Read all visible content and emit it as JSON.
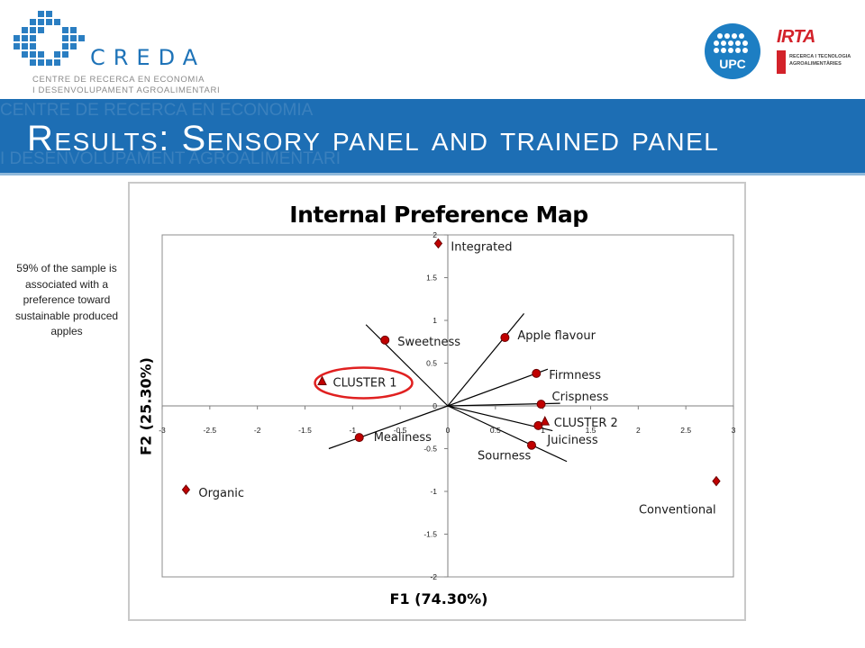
{
  "header": {
    "creda_name": "CREDA",
    "creda_sub1": "CENTRE DE RECERCA EN ECONOMIA",
    "creda_sub2": "I DESENVOLUPAMENT AGROALIMENTARI",
    "upc_name": "UPC",
    "irta_name": "IRTA",
    "irta_sub1": "RECERCA I TECNOLOGIA",
    "irta_sub2": "AGROALIMENTÀRIES"
  },
  "banner": {
    "title": "Results: Sensory panel and trained panel"
  },
  "side_note": "59% of the sample is associated with a preference toward sustainable produced apples",
  "colors": {
    "banner": "#1d6eb4",
    "marker_fill": "#c00000",
    "marker_stroke": "#6b0000",
    "cluster_circle": "#e02020"
  },
  "chart_data": {
    "type": "scatter",
    "title": "Internal Preference Map",
    "xlabel": "F1 (74.30%)",
    "ylabel": "F2 (25.30%)",
    "xlim": [
      -3,
      3
    ],
    "ylim": [
      -2,
      2
    ],
    "xticks": [
      -3,
      -2.5,
      -2,
      -1.5,
      -1,
      -0.5,
      0,
      0.5,
      1,
      1.5,
      2,
      2.5,
      3
    ],
    "yticks": [
      -2,
      -1.5,
      -1,
      -0.5,
      0,
      0.5,
      1,
      1.5,
      2
    ],
    "products": [
      {
        "label": "Integrated",
        "x": -0.1,
        "y": 1.9
      },
      {
        "label": "Organic",
        "x": -2.75,
        "y": -0.98
      },
      {
        "label": "Conventional",
        "x": 2.82,
        "y": -0.88
      }
    ],
    "attributes": [
      {
        "label": "Sweetness",
        "x": -0.66,
        "y": 0.77,
        "line_end": [
          -0.86,
          0.95
        ]
      },
      {
        "label": "Apple flavour",
        "x": 0.6,
        "y": 0.8,
        "line_end": [
          0.8,
          1.08
        ]
      },
      {
        "label": "Firmness",
        "x": 0.93,
        "y": 0.38,
        "line_end": [
          1.05,
          0.43
        ]
      },
      {
        "label": "Crispness",
        "x": 0.98,
        "y": 0.02,
        "line_end": [
          1.18,
          0.03
        ]
      },
      {
        "label": "Juiciness",
        "x": 0.95,
        "y": -0.23,
        "line_end": [
          1.1,
          -0.29
        ]
      },
      {
        "label": "Sourness",
        "x": 0.88,
        "y": -0.46,
        "line_end": [
          1.25,
          -0.65
        ]
      },
      {
        "label": "Mealiness",
        "x": -0.93,
        "y": -0.37,
        "line_end": [
          -1.25,
          -0.5
        ]
      }
    ],
    "clusters": [
      {
        "label": "CLUSTER 1",
        "x": -1.32,
        "y": 0.29,
        "circled": true
      },
      {
        "label": "CLUSTER 2",
        "x": 1.02,
        "y": -0.18,
        "circled": false
      }
    ]
  }
}
